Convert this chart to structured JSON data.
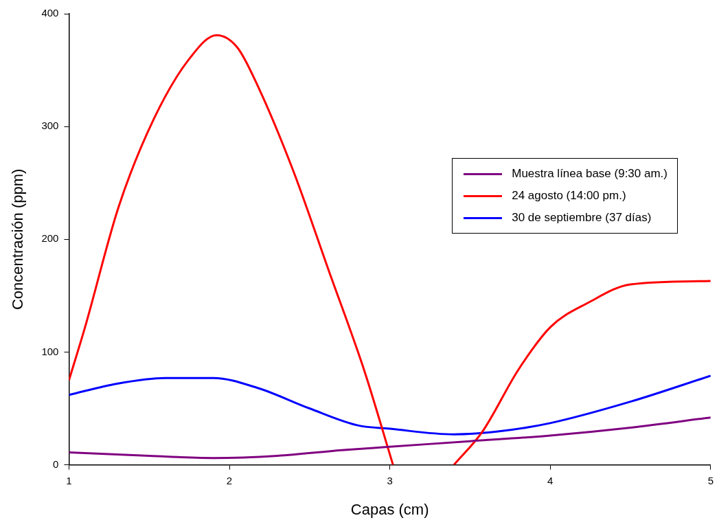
{
  "chart_data": {
    "type": "line",
    "xlabel": "Capas (cm)",
    "ylabel": "Concentración (ppm)",
    "xlim": [
      1,
      5
    ],
    "xticks": [
      1,
      2,
      3,
      4,
      5
    ],
    "ylim": [
      0,
      400
    ],
    "yticks": [
      0,
      100,
      200,
      300,
      400
    ],
    "grid": false,
    "legend": "right",
    "marker": "none",
    "line_style": "solid",
    "series": [
      {
        "name": "Muestra línea base (9:30 am.)",
        "color": "#800080",
        "x": [
          1,
          1.5,
          1.9,
          2.3,
          2.7,
          3.0,
          3.5,
          4.0,
          4.5,
          5
        ],
        "values": [
          11,
          8,
          6,
          8,
          13,
          16,
          21,
          26,
          33,
          42
        ]
      },
      {
        "name": "24 agosto (14:00 pm.)",
        "color": "#ff0000",
        "x": [
          1,
          1.1,
          1.31,
          1.53,
          1.75,
          1.92,
          2.05,
          2.18,
          2.4,
          2.62,
          2.84,
          3.02,
          3.2,
          3.4,
          3.58,
          3.8,
          4.0,
          4.24,
          4.5,
          5
        ],
        "values": [
          75,
          122,
          229,
          307,
          360,
          381,
          370,
          335,
          260,
          172,
          84,
          0,
          null,
          0,
          30,
          84,
          122,
          144,
          160,
          163
        ]
      },
      {
        "name": "30 de septiembre (37 días)",
        "color": "#0000ff",
        "x": [
          1,
          1.3,
          1.6,
          1.9,
          2.18,
          2.5,
          2.8,
          3.0,
          3.4,
          3.7,
          4.0,
          4.5,
          5
        ],
        "values": [
          62,
          72,
          77,
          77,
          68,
          50,
          35,
          32,
          27,
          30,
          37,
          56,
          79
        ]
      }
    ]
  }
}
